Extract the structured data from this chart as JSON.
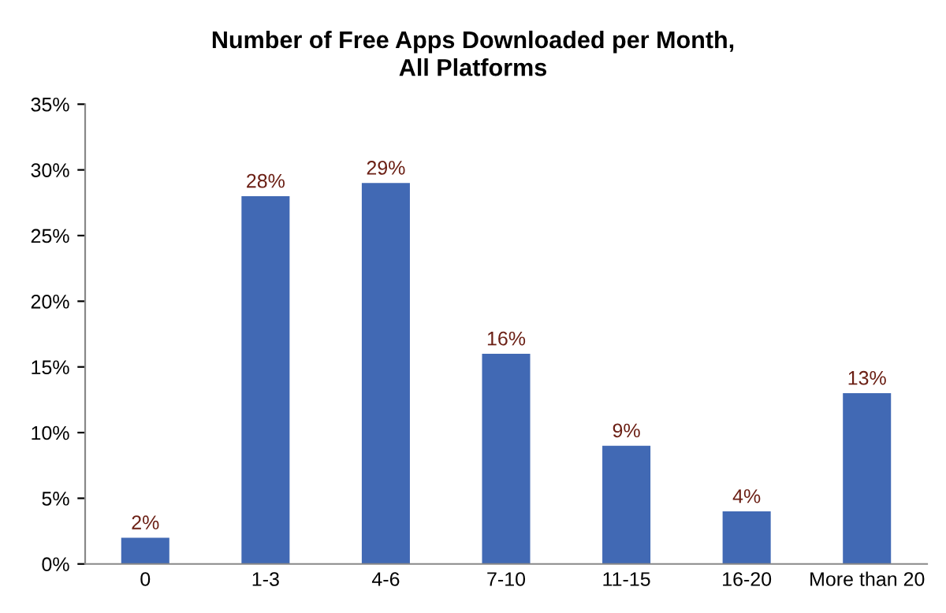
{
  "chart_data": {
    "type": "bar",
    "title": "Number of Free Apps Downloaded per Month,\nAll Platforms",
    "categories": [
      "0",
      "1-3",
      "4-6",
      "7-10",
      "11-15",
      "16-20",
      "More than 20"
    ],
    "values": [
      2,
      28,
      29,
      16,
      9,
      4,
      13
    ],
    "value_labels": [
      "2%",
      "28%",
      "29%",
      "16%",
      "9%",
      "4%",
      "13%"
    ],
    "color": "#4169b4",
    "ylim": [
      0,
      35
    ],
    "yticks": [
      {
        "value": 0,
        "label": "0%"
      },
      {
        "value": 5,
        "label": "5%"
      },
      {
        "value": 10,
        "label": "10%"
      },
      {
        "value": 15,
        "label": "15%"
      },
      {
        "value": 20,
        "label": "20%"
      },
      {
        "value": 25,
        "label": "25%"
      },
      {
        "value": 30,
        "label": "30%"
      },
      {
        "value": 35,
        "label": "35%"
      }
    ],
    "grid": false,
    "legend": false
  }
}
